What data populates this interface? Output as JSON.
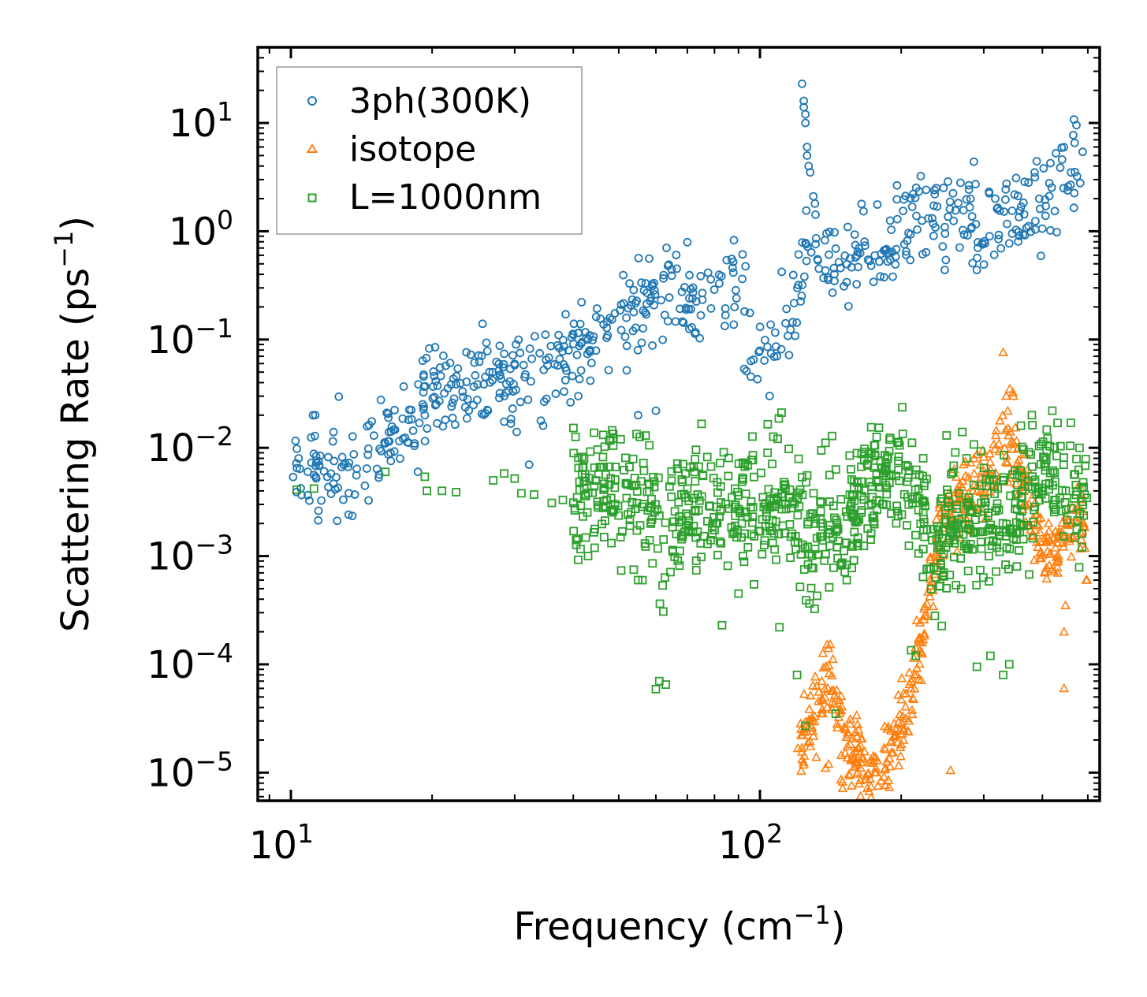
{
  "chart_data": {
    "type": "scatter",
    "xscale": "log",
    "yscale": "log",
    "xlim": [
      8.5,
      530
    ],
    "ylim": [
      5.5e-06,
      50
    ],
    "xlabel": "Frequency (cm",
    "xlabel_sup": "−1",
    "xlabel_end": ")",
    "ylabel": "Scattering Rate (ps",
    "ylabel_sup": "−1",
    "ylabel_end": ")",
    "x_ticks": [
      {
        "value": 10,
        "base": "10",
        "exp": "1"
      },
      {
        "value": 100,
        "base": "10",
        "exp": "2"
      }
    ],
    "y_ticks": [
      {
        "value": 1e-05,
        "base": "10",
        "exp": "−5"
      },
      {
        "value": 0.0001,
        "base": "10",
        "exp": "−4"
      },
      {
        "value": 0.001,
        "base": "10",
        "exp": "−3"
      },
      {
        "value": 0.01,
        "base": "10",
        "exp": "−2"
      },
      {
        "value": 0.1,
        "base": "10",
        "exp": "−1"
      },
      {
        "value": 1,
        "base": "10",
        "exp": "0"
      },
      {
        "value": 10,
        "base": "10",
        "exp": "1"
      }
    ],
    "legend_position": "top-left",
    "series": [
      {
        "name": "3ph(300K)",
        "marker": "circle",
        "color": "#1f77b4",
        "trend": [
          [
            10.1,
            0.009
          ],
          [
            12,
            0.006
          ],
          [
            16,
            0.011
          ],
          [
            20,
            0.035
          ],
          [
            25,
            0.04
          ],
          [
            30,
            0.045
          ],
          [
            40,
            0.07
          ],
          [
            50,
            0.12
          ],
          [
            60,
            0.25
          ],
          [
            65,
            0.3
          ],
          [
            70,
            0.2
          ],
          [
            80,
            0.3
          ],
          [
            90,
            0.35
          ],
          [
            95,
            0.1
          ],
          [
            100,
            0.07
          ],
          [
            105,
            0.06
          ],
          [
            110,
            0.12
          ],
          [
            115,
            0.2
          ],
          [
            120,
            0.3
          ],
          [
            125,
            0.5
          ],
          [
            130,
            0.5
          ],
          [
            150,
            0.5
          ],
          [
            170,
            0.6
          ],
          [
            200,
            1.0
          ],
          [
            230,
            1.5
          ],
          [
            260,
            1.5
          ],
          [
            300,
            1.1
          ],
          [
            350,
            1.5
          ],
          [
            400,
            2.0
          ],
          [
            450,
            3.0
          ],
          [
            490,
            4.0
          ]
        ],
        "spread": 0.22,
        "count": 650,
        "extra_points": [
          [
            10.3,
            0.0098
          ],
          [
            10.3,
            0.0065
          ],
          [
            11.2,
            0.0056
          ],
          [
            15.9,
            0.011
          ],
          [
            19.2,
            0.024
          ],
          [
            19.3,
            0.02
          ],
          [
            20.3,
            0.085
          ],
          [
            20.2,
            0.046
          ],
          [
            22,
            0.024
          ],
          [
            26.5,
            0.05
          ],
          [
            27.9,
            0.032
          ],
          [
            28.5,
            0.03
          ],
          [
            29.3,
            0.041
          ],
          [
            30,
            0.058
          ],
          [
            30.2,
            0.09
          ],
          [
            30.3,
            0.014
          ],
          [
            29.7,
            0.023
          ],
          [
            31.5,
            0.045
          ],
          [
            32.2,
            0.007
          ],
          [
            34.5,
            0.016
          ],
          [
            35,
            0.065
          ],
          [
            36.5,
            0.059
          ],
          [
            38.5,
            0.055
          ],
          [
            40,
            0.11
          ],
          [
            41,
            0.03
          ],
          [
            43,
            0.1
          ],
          [
            52,
            0.052
          ],
          [
            55,
            0.02
          ],
          [
            60,
            0.022
          ],
          [
            123,
            23
          ],
          [
            124,
            16
          ],
          [
            124,
            14
          ],
          [
            125,
            12
          ],
          [
            125,
            10
          ],
          [
            126,
            6
          ],
          [
            126,
            5
          ],
          [
            127,
            4
          ],
          [
            128,
            3.5
          ],
          [
            130,
            2.1
          ],
          [
            131,
            1.8
          ]
        ]
      },
      {
        "name": "isotope",
        "marker": "triangle",
        "color": "#ff7f0e",
        "trend": [
          [
            120,
            1.5e-05
          ],
          [
            125,
            2e-05
          ],
          [
            130,
            3e-05
          ],
          [
            135,
            6e-05
          ],
          [
            140,
            8e-05
          ],
          [
            145,
            4e-05
          ],
          [
            150,
            1.6e-05
          ],
          [
            180,
            1.1e-05
          ],
          [
            190,
            1.5e-05
          ],
          [
            200,
            3e-05
          ],
          [
            210,
            6e-05
          ],
          [
            220,
            0.00015
          ],
          [
            230,
            0.0005
          ],
          [
            240,
            0.0015
          ],
          [
            260,
            0.003
          ],
          [
            280,
            0.004
          ],
          [
            300,
            0.005
          ],
          [
            320,
            0.009
          ],
          [
            340,
            0.011
          ],
          [
            360,
            0.006
          ],
          [
            380,
            0.002
          ],
          [
            400,
            0.0012
          ],
          [
            420,
            0.001
          ],
          [
            450,
            0.0015
          ],
          [
            480,
            0.0025
          ],
          [
            500,
            0.0015
          ]
        ],
        "spread": 0.18,
        "count": 500,
        "extra_points": [
          [
            330,
            0.076
          ],
          [
            335,
            0.03
          ],
          [
            341,
            0.035
          ],
          [
            347,
            0.03
          ],
          [
            445,
            6e-05
          ],
          [
            448,
            0.00035
          ],
          [
            445,
            0.0002
          ],
          [
            496,
            0.0006
          ],
          [
            498,
            0.0006
          ],
          [
            255,
            1.05e-05
          ],
          [
            176,
            1e-05
          ],
          [
            185,
            1.1e-05
          ],
          [
            140,
            1.2e-05
          ],
          [
            138,
            1.1e-05
          ]
        ]
      },
      {
        "name": "L=1000nm",
        "marker": "square",
        "color": "#2ca02c",
        "trend": [
          [
            10.1,
            0.0041
          ],
          [
            20,
            0.0045
          ],
          [
            30,
            0.005
          ],
          [
            40,
            0.0045
          ],
          [
            50,
            0.004
          ],
          [
            60,
            0.0035
          ],
          [
            61,
            0.0008
          ],
          [
            62,
            0.0003
          ],
          [
            63,
            0.0015
          ],
          [
            70,
            0.003
          ],
          [
            90,
            0.0032
          ],
          [
            110,
            0.003
          ],
          [
            120,
            0.0025
          ],
          [
            130,
            0.0015
          ],
          [
            140,
            0.0025
          ],
          [
            150,
            0.001
          ],
          [
            160,
            0.004
          ],
          [
            200,
            0.005
          ],
          [
            220,
            0.004
          ],
          [
            230,
            0.0015
          ],
          [
            240,
            0.001
          ],
          [
            260,
            0.0025
          ],
          [
            300,
            0.002
          ],
          [
            350,
            0.0025
          ],
          [
            400,
            0.005
          ],
          [
            450,
            0.004
          ],
          [
            480,
            0.003
          ],
          [
            500,
            0.0025
          ]
        ],
        "spread": 0.3,
        "count": 900,
        "extra_points": [
          [
            10.3,
            0.0041
          ],
          [
            11.2,
            0.0042
          ],
          [
            15.9,
            0.006
          ],
          [
            19.3,
            0.0054
          ],
          [
            19.5,
            0.004
          ],
          [
            21,
            0.004
          ],
          [
            22.5,
            0.0039
          ],
          [
            27,
            0.005
          ],
          [
            28.5,
            0.0058
          ],
          [
            30,
            0.0052
          ],
          [
            31,
            0.0038
          ],
          [
            33,
            0.0037
          ],
          [
            36,
            0.0031
          ],
          [
            38,
            0.0033
          ],
          [
            55,
            0.0006
          ],
          [
            60,
            5.9e-05
          ],
          [
            61,
            7e-05
          ],
          [
            63,
            6.5e-05
          ],
          [
            83,
            0.00023
          ],
          [
            90,
            0.00045
          ],
          [
            92,
            0.001
          ],
          [
            110,
            0.00022
          ],
          [
            120,
            8e-05
          ],
          [
            125,
            2.7e-05
          ],
          [
            145,
            3.5e-05
          ],
          [
            210,
            0.000135
          ],
          [
            215,
            0.00012
          ],
          [
            250,
            0.013
          ],
          [
            270,
            0.014
          ],
          [
            290,
            9.5e-05
          ],
          [
            310,
            0.00012
          ],
          [
            330,
            8e-05
          ],
          [
            340,
            0.0001
          ],
          [
            360,
            0.016
          ],
          [
            380,
            0.02
          ],
          [
            420,
            0.022
          ],
          [
            460,
            0.017
          ],
          [
            480,
            0.01
          ]
        ]
      }
    ]
  }
}
